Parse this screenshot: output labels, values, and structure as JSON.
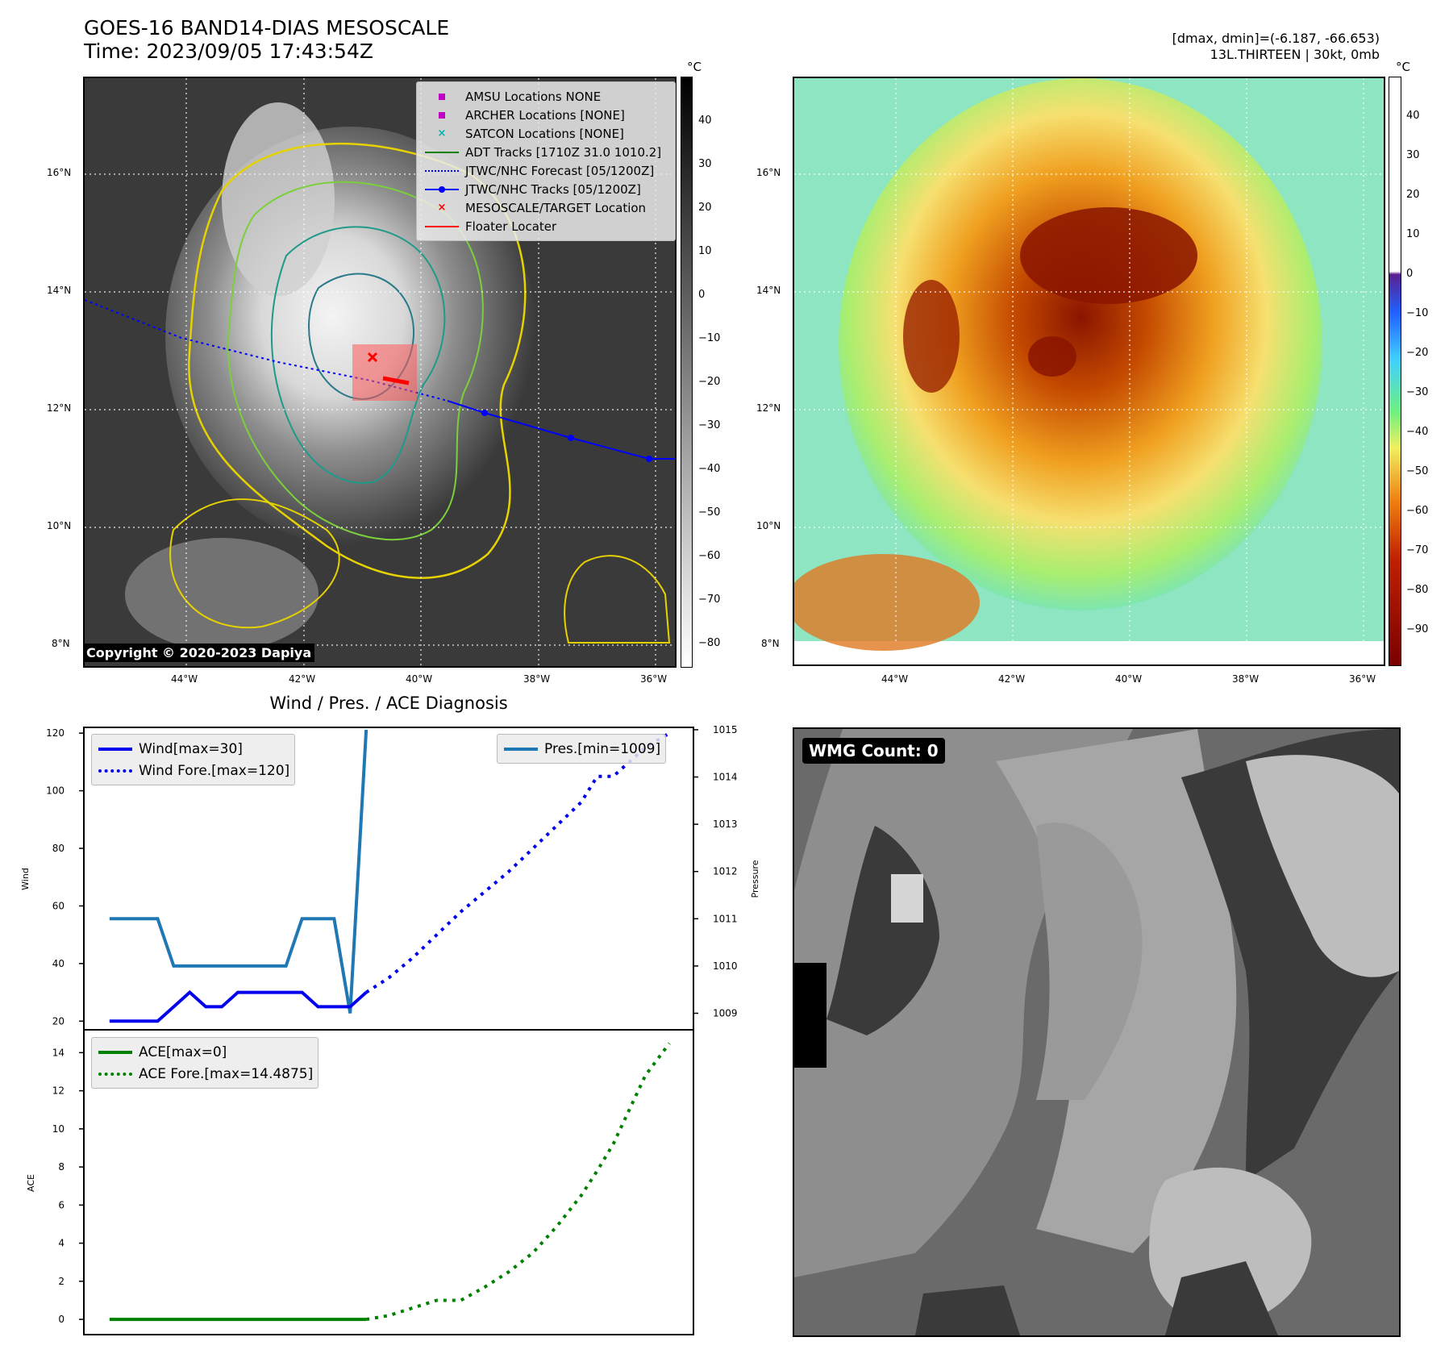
{
  "header": {
    "title_line1": "GOES-16 BAND14-DIAS MESOSCALE",
    "title_line2": "Time: 2023/09/05 17:43:54Z",
    "right_line1": "[dmax, dmin]=(-6.187, -66.653)",
    "right_line2": "13L.THIRTEEN | 30kt, 0mb"
  },
  "ir_panel": {
    "lat_labels": [
      "16°N",
      "14°N",
      "12°N",
      "10°N",
      "8°N"
    ],
    "lon_labels": [
      "44°W",
      "42°W",
      "40°W",
      "38°W",
      "36°W"
    ],
    "colorbar_unit": "°C",
    "colorbar_ticks": [
      "40",
      "30",
      "20",
      "10",
      "0",
      "−10",
      "−20",
      "−30",
      "−40",
      "−50",
      "−60",
      "−70",
      "−80"
    ],
    "copyright": "Copyright © 2020-2023 Dapiya",
    "legend": [
      {
        "label": "AMSU Locations NONE",
        "color": "#c000c0",
        "marker": "square"
      },
      {
        "label": "ARCHER Locations [NONE]",
        "color": "#c000c0",
        "marker": "square"
      },
      {
        "label": "SATCON Locations [NONE]",
        "color": "#00b0b0",
        "marker": "x"
      },
      {
        "label": "ADT Tracks [1710Z 31.0 1010.2]",
        "color": "#008000",
        "marker": "line"
      },
      {
        "label": "JTWC/NHC Forecast [05/1200Z]",
        "color": "#0000ff",
        "marker": "dotted"
      },
      {
        "label": "JTWC/NHC Tracks [05/1200Z]",
        "color": "#0000ff",
        "marker": "line-dot"
      },
      {
        "label": "MESOSCALE/TARGET Location",
        "color": "#ff0000",
        "marker": "x"
      },
      {
        "label": "Floater Locater",
        "color": "#ff0000",
        "marker": "line"
      }
    ]
  },
  "color_panel": {
    "lat_labels": [
      "16°N",
      "14°N",
      "12°N",
      "10°N",
      "8°N"
    ],
    "lon_labels": [
      "44°W",
      "42°W",
      "40°W",
      "38°W",
      "36°W"
    ],
    "colorbar_unit": "°C",
    "colorbar_ticks": [
      "40",
      "30",
      "20",
      "10",
      "0",
      "−10",
      "−20",
      "−30",
      "−40",
      "−50",
      "−60",
      "−70",
      "−80",
      "−90"
    ]
  },
  "wmg_panel": {
    "badge": "WMG Count: 0"
  },
  "chart_data": [
    {
      "type": "line",
      "title": "Wind / Pres. / ACE Diagnosis",
      "ylabel": "Wind",
      "ylabel_right": "Pressure",
      "ylim": [
        17,
        122
      ],
      "ylim_right": [
        1008.65,
        1015.05
      ],
      "yticks": [
        "120",
        "100",
        "80",
        "60",
        "40",
        "20"
      ],
      "yticks_right": [
        "1015",
        "1014",
        "1013",
        "1012",
        "1011",
        "1010",
        "1009"
      ],
      "xlim": [
        0,
        38
      ],
      "series": [
        {
          "name": "Wind[max=30]",
          "axis": "left",
          "style": "solid",
          "color": "#0000ee",
          "x": [
            1.6,
            2.6,
            3.6,
            4.6,
            5.6,
            6.6,
            7.6,
            8.6,
            9.6,
            10.6,
            11.6,
            12.6,
            13.6,
            14.6,
            15.6,
            16.6,
            17.6
          ],
          "values": [
            20,
            20,
            20,
            20,
            25,
            30,
            25,
            25,
            30,
            30,
            30,
            30,
            30,
            25,
            25,
            25,
            30
          ]
        },
        {
          "name": "Wind Fore.[max=120]",
          "axis": "left",
          "style": "dotted",
          "color": "#0000ee",
          "x": [
            17.6,
            19,
            20.5,
            22,
            23.5,
            25,
            26.5,
            28,
            29.5,
            31,
            32,
            33,
            34,
            35,
            36.5
          ],
          "values": [
            30,
            35,
            42,
            50,
            58,
            65,
            72,
            80,
            88,
            96,
            105,
            105,
            110,
            115,
            120
          ]
        },
        {
          "name": "Pres.[min=1009]",
          "axis": "right",
          "style": "solid",
          "color": "#1f77b4",
          "x": [
            1.6,
            2.6,
            3.6,
            4.6,
            5.6,
            6.6,
            7.6,
            8.6,
            9.6,
            10.6,
            11.6,
            12.6,
            13.6,
            14.6,
            15.6,
            16.6,
            17.6
          ],
          "values": [
            1011,
            1011,
            1011,
            1011,
            1010,
            1010,
            1010,
            1010,
            1010,
            1010,
            1010,
            1010,
            1011,
            1011,
            1011,
            1009,
            1015
          ]
        }
      ]
    },
    {
      "type": "line",
      "ylabel": "ACE",
      "ylim": [
        -0.8,
        15.2
      ],
      "yticks": [
        "14",
        "12",
        "10",
        "8",
        "6",
        "4",
        "2",
        "0"
      ],
      "xlim": [
        0,
        38
      ],
      "series": [
        {
          "name": "ACE[max=0]",
          "style": "solid",
          "color": "#008000",
          "x": [
            1.6,
            17.6
          ],
          "values": [
            0,
            0
          ]
        },
        {
          "name": "ACE Fore.[max=14.4875]",
          "style": "dotted",
          "color": "#008000",
          "x": [
            17.6,
            19,
            20.5,
            22,
            23.5,
            25,
            26.5,
            28,
            29.5,
            31,
            32,
            33,
            34,
            35,
            36.5
          ],
          "values": [
            0,
            0.2,
            0.6,
            1,
            1,
            1.7,
            2.5,
            3.5,
            4.9,
            6.5,
            7.8,
            9.2,
            11,
            12.8,
            14.49
          ]
        }
      ]
    }
  ]
}
